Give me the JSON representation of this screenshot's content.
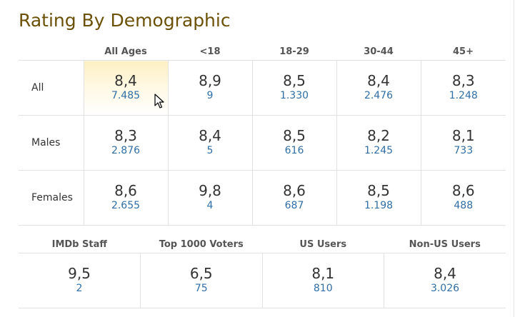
{
  "title": "Rating By Demographic",
  "demographic": {
    "headers": [
      "",
      "All Ages",
      "<18",
      "18-29",
      "30-44",
      "45+"
    ],
    "rows": [
      {
        "label": "All",
        "cells": [
          {
            "rating": "8,4",
            "votes": "7.485"
          },
          {
            "rating": "8,9",
            "votes": "9"
          },
          {
            "rating": "8,5",
            "votes": "1.330"
          },
          {
            "rating": "8,4",
            "votes": "2.476"
          },
          {
            "rating": "8,3",
            "votes": "1.248"
          }
        ]
      },
      {
        "label": "Males",
        "cells": [
          {
            "rating": "8,3",
            "votes": "2.876"
          },
          {
            "rating": "8,4",
            "votes": "5"
          },
          {
            "rating": "8,5",
            "votes": "616"
          },
          {
            "rating": "8,2",
            "votes": "1.245"
          },
          {
            "rating": "8,1",
            "votes": "733"
          }
        ]
      },
      {
        "label": "Females",
        "cells": [
          {
            "rating": "8,6",
            "votes": "2.655"
          },
          {
            "rating": "9,8",
            "votes": "4"
          },
          {
            "rating": "8,6",
            "votes": "687"
          },
          {
            "rating": "8,5",
            "votes": "1.198"
          },
          {
            "rating": "8,6",
            "votes": "488"
          }
        ]
      }
    ]
  },
  "special": {
    "headers": [
      "IMDb Staff",
      "Top 1000 Voters",
      "US Users",
      "Non-US Users"
    ],
    "cells": [
      {
        "rating": "9,5",
        "votes": "2"
      },
      {
        "rating": "6,5",
        "votes": "75"
      },
      {
        "rating": "8,1",
        "votes": "810"
      },
      {
        "rating": "8,4",
        "votes": "3.026"
      }
    ]
  },
  "colors": {
    "title": "#6b5106",
    "votes_link": "#2f6ea5",
    "highlight": "#fdf0c4"
  },
  "icons": {
    "cursor": "mouse-pointer-icon"
  }
}
